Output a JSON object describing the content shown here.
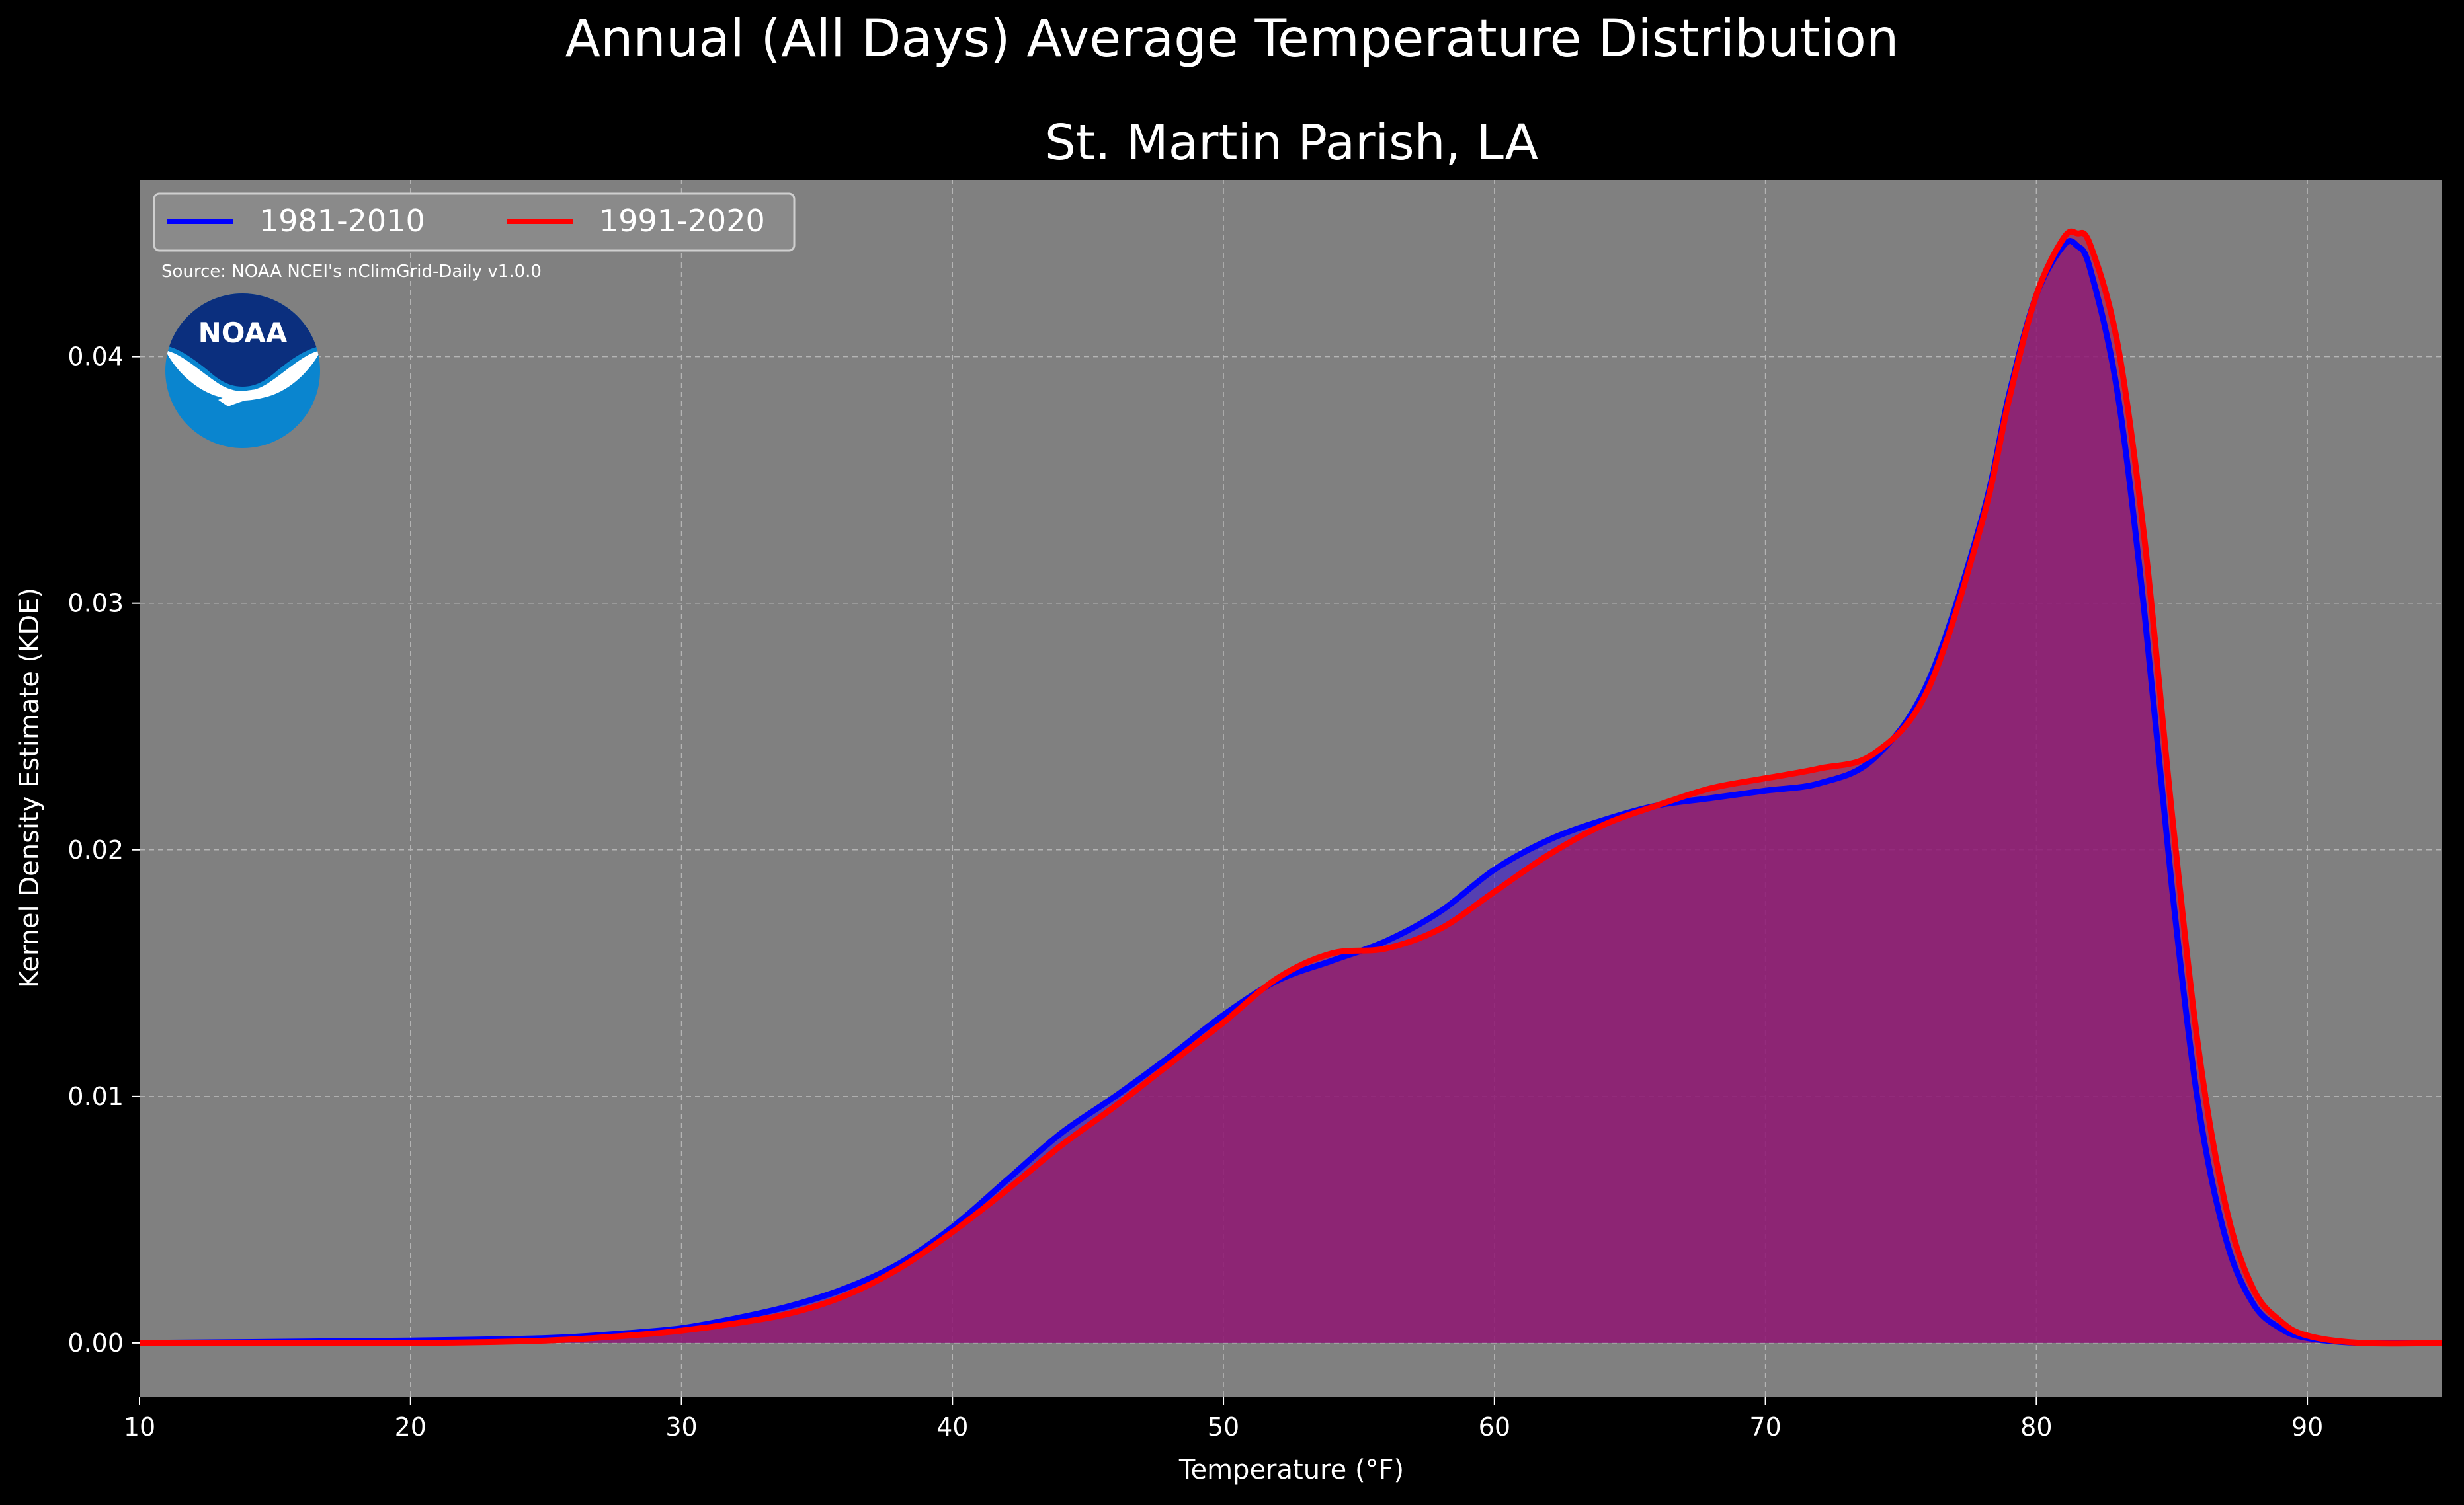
{
  "figure": {
    "suptitle": "Annual (All Days) Average Temperature Distribution",
    "background": "#000000",
    "plot_background": "#808080"
  },
  "source_note": "Source: NOAA NCEI's nClimGrid-Daily v1.0.0",
  "logo": {
    "text": "NOAA",
    "icon": "noaa-logo-icon",
    "dark_color": "#0b2f7e",
    "light_color": "#0a85cf"
  },
  "chart_data": {
    "type": "area",
    "title": "St. Martin Parish, LA",
    "xlabel": "Temperature ($^\\circ$F)",
    "xlabel_display": "Temperature (°F)",
    "ylabel": "Kernel Density Estimate (KDE)",
    "xlim": [
      10,
      95
    ],
    "ylim": [
      -0.0022,
      0.0472
    ],
    "xticks": [
      10,
      20,
      30,
      40,
      50,
      60,
      70,
      80,
      90
    ],
    "yticks": [
      0.0,
      0.01,
      0.02,
      0.03,
      0.04
    ],
    "ytick_labels": [
      "0.00",
      "0.01",
      "0.02",
      "0.03",
      "0.04"
    ],
    "grid": true,
    "legend": {
      "placement": "top-left",
      "columns": 2
    },
    "series": [
      {
        "name": "1981-2010",
        "color": "#0000ff",
        "fill": "#3a18ce",
        "x": [
          10,
          20,
          25,
          28,
          30,
          32,
          34,
          36,
          38,
          40,
          42,
          44,
          46,
          48,
          50,
          52,
          54,
          56,
          58,
          60,
          62,
          64,
          66,
          68,
          70,
          72,
          74,
          76,
          78,
          79,
          80,
          81,
          81.5,
          82,
          83,
          84,
          85,
          86,
          87,
          88,
          89,
          90,
          92,
          95
        ],
        "y": [
          0.0,
          0.0001,
          0.0002,
          0.0004,
          0.0006,
          0.001,
          0.0015,
          0.0022,
          0.0032,
          0.0047,
          0.0066,
          0.0085,
          0.01,
          0.0116,
          0.0133,
          0.0147,
          0.0155,
          0.0163,
          0.0175,
          0.0192,
          0.0204,
          0.0212,
          0.0218,
          0.0221,
          0.0224,
          0.0227,
          0.0237,
          0.0268,
          0.0335,
          0.0385,
          0.0425,
          0.0445,
          0.0445,
          0.0435,
          0.0385,
          0.0295,
          0.0185,
          0.0095,
          0.0042,
          0.0016,
          0.0006,
          0.0002,
          0.0,
          0.0
        ]
      },
      {
        "name": "1991-2020",
        "color": "#ff0000",
        "fill": "#b0154f",
        "x": [
          10,
          20,
          25,
          28,
          30,
          32,
          34,
          36,
          38,
          40,
          42,
          44,
          46,
          48,
          50,
          52,
          54,
          56,
          58,
          60,
          62,
          64,
          66,
          68,
          70,
          72,
          74,
          76,
          78,
          79,
          80,
          81,
          81.5,
          82,
          83,
          84,
          85,
          86,
          87,
          88,
          89,
          90,
          92,
          95
        ],
        "y": [
          0.0,
          0.0,
          0.0001,
          0.0003,
          0.0005,
          0.0008,
          0.0012,
          0.0019,
          0.003,
          0.0045,
          0.0062,
          0.008,
          0.0096,
          0.0113,
          0.013,
          0.0148,
          0.0158,
          0.016,
          0.0168,
          0.0183,
          0.0198,
          0.021,
          0.0218,
          0.0225,
          0.0229,
          0.0233,
          0.0239,
          0.0265,
          0.0333,
          0.0383,
          0.0425,
          0.0448,
          0.045,
          0.0445,
          0.0405,
          0.0325,
          0.0215,
          0.0118,
          0.0055,
          0.0022,
          0.0009,
          0.0003,
          0.0,
          0.0
        ]
      }
    ]
  }
}
